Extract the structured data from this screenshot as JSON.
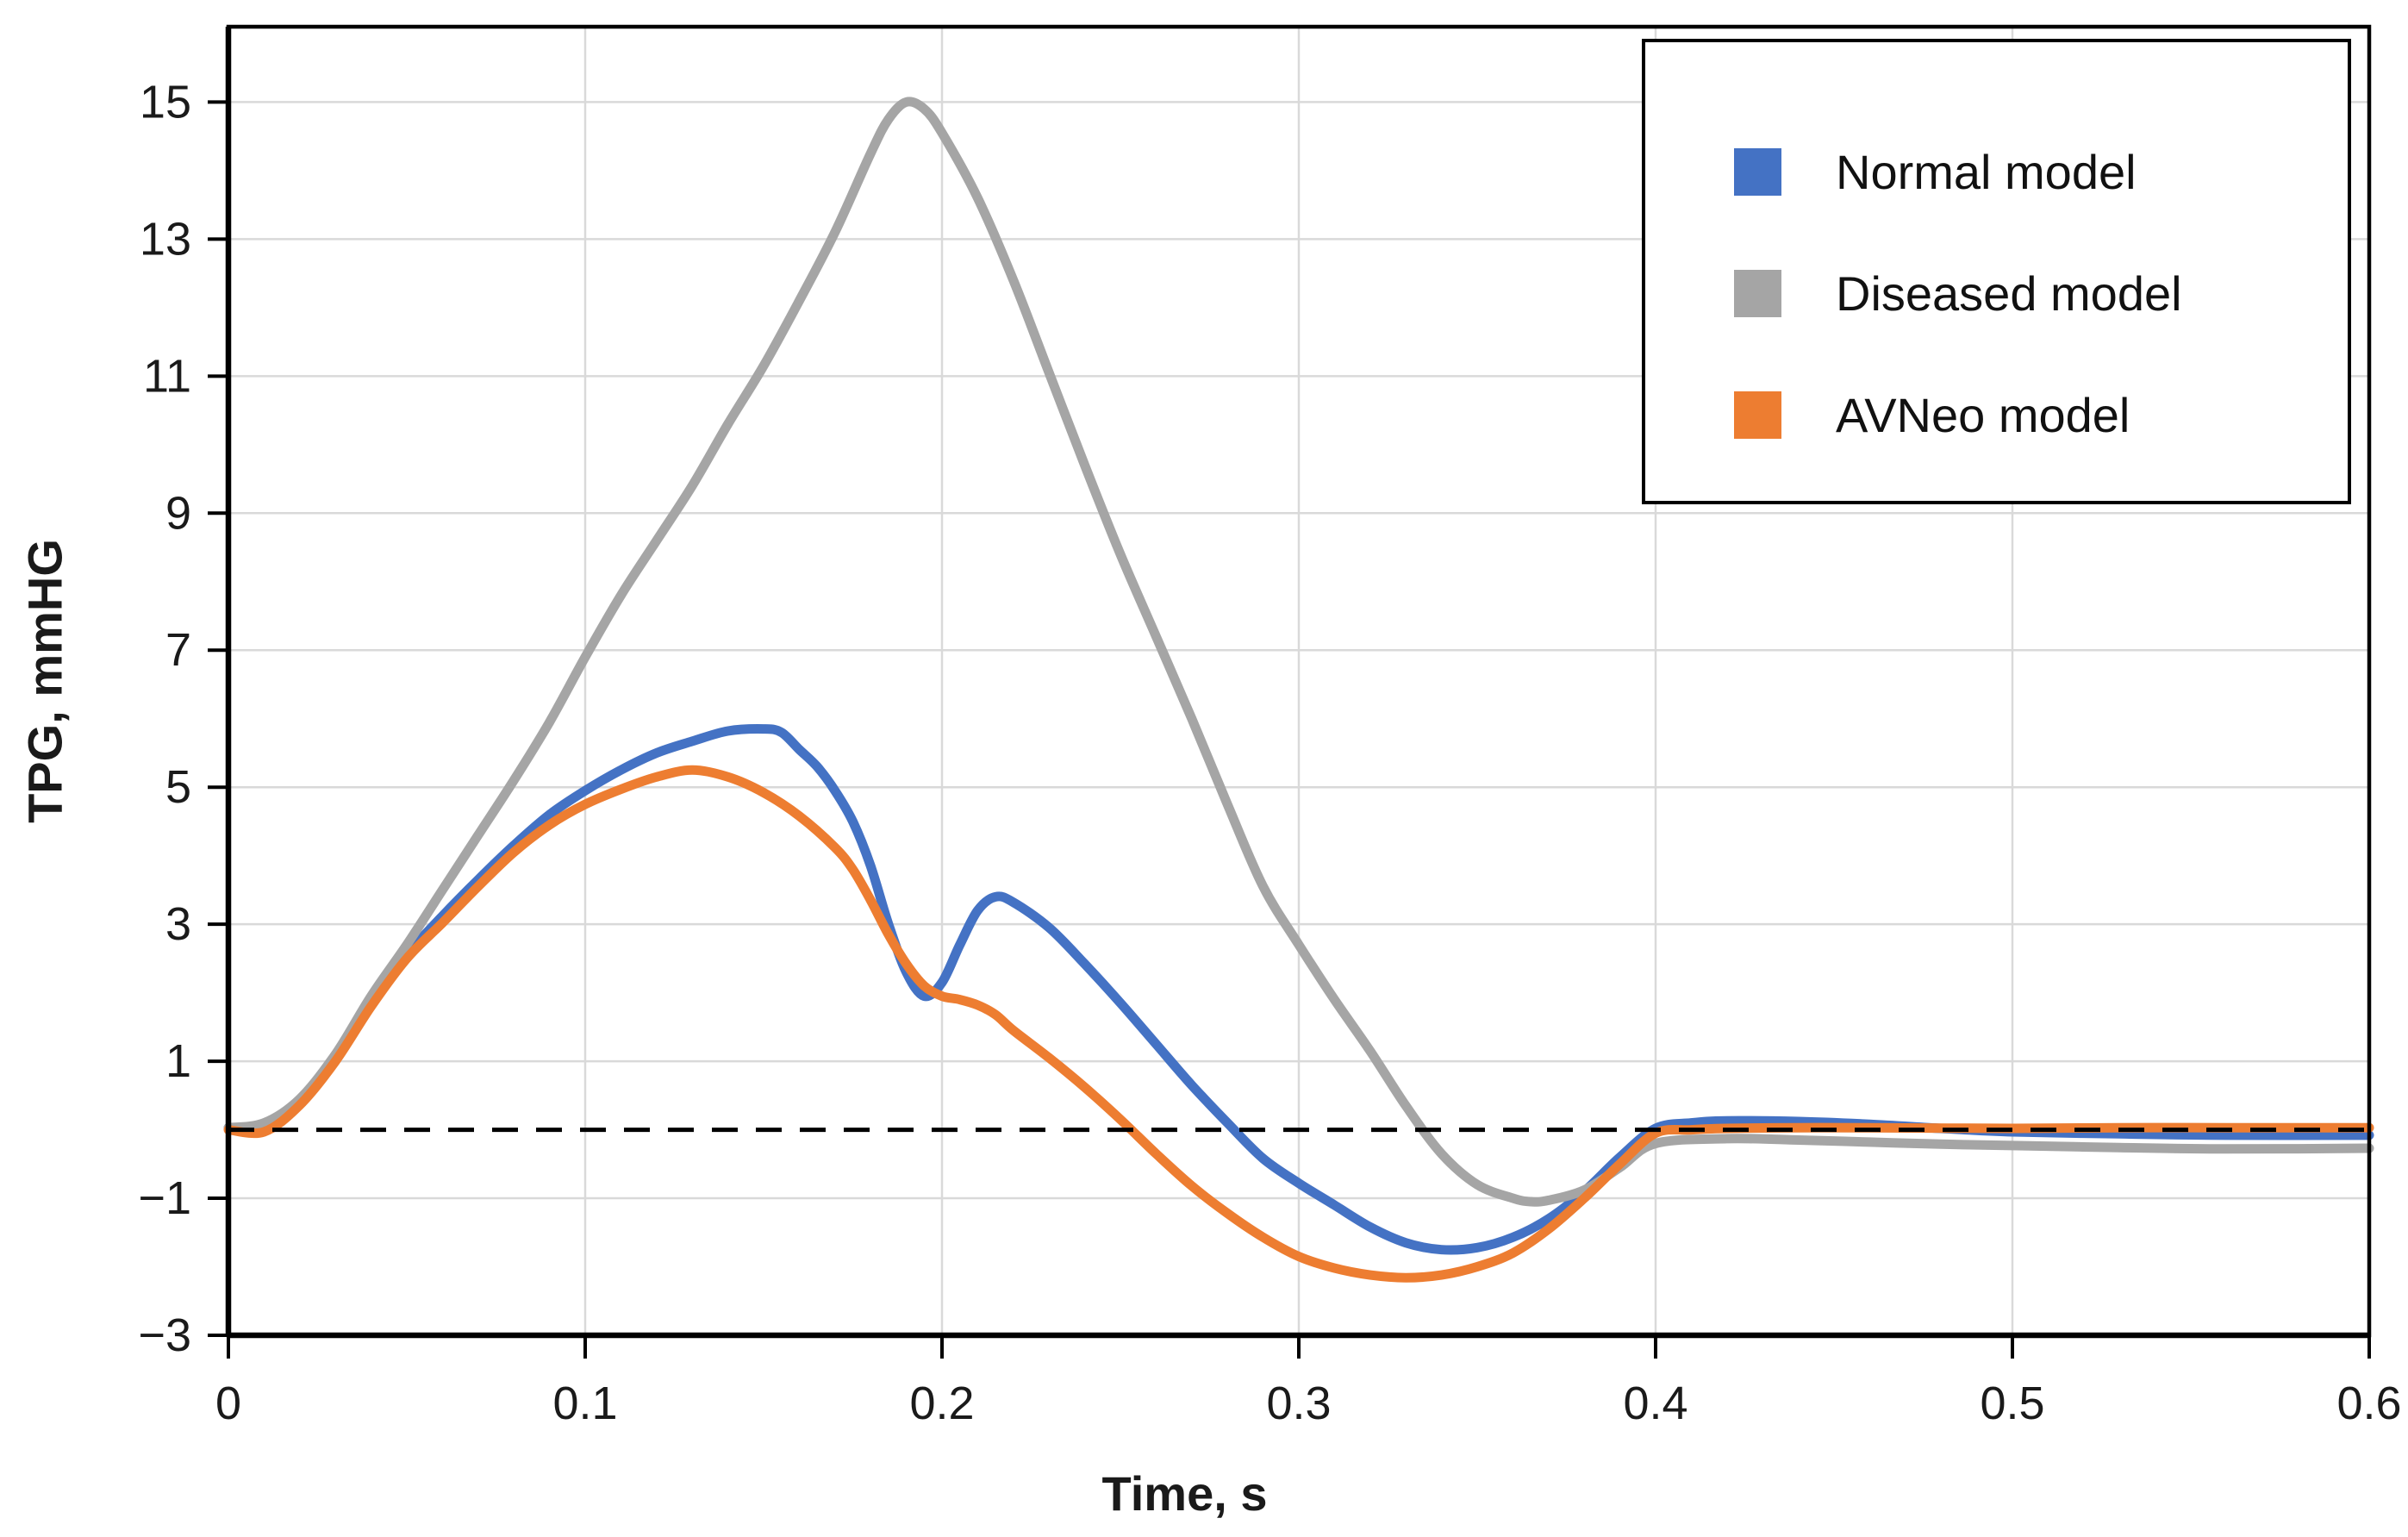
{
  "chart_data": {
    "type": "line",
    "title": "",
    "xlabel": "Time, s",
    "ylabel": "TPG, mmHG",
    "xlim": [
      0,
      0.6
    ],
    "ylim": [
      -3,
      16.1
    ],
    "grid": true,
    "legend_position": "top-right",
    "x_ticks": {
      "values": [
        0,
        0.1,
        0.2,
        0.3,
        0.4,
        0.5,
        0.6
      ],
      "labels": [
        "0",
        "0.1",
        "0.2",
        "0.3",
        "0.4",
        "0.5",
        "0.6"
      ]
    },
    "y_ticks": {
      "values": [
        15,
        13,
        11,
        9,
        7,
        5,
        3,
        1,
        -1,
        -3
      ],
      "labels": [
        "15",
        "13",
        "11",
        "9",
        "7",
        "5",
        "3",
        "1",
        "−1",
        "−3"
      ]
    },
    "zero_line": {
      "style": "dashed",
      "value": 0,
      "color": "#000000"
    },
    "series": [
      {
        "name": "Normal model",
        "color": "#4472C4",
        "points": [
          [
            0,
            0.03
          ],
          [
            0.01,
            0.08
          ],
          [
            0.02,
            0.42
          ],
          [
            0.03,
            1.05
          ],
          [
            0.04,
            1.85
          ],
          [
            0.05,
            2.55
          ],
          [
            0.06,
            3.12
          ],
          [
            0.07,
            3.65
          ],
          [
            0.08,
            4.15
          ],
          [
            0.09,
            4.6
          ],
          [
            0.1,
            4.95
          ],
          [
            0.11,
            5.25
          ],
          [
            0.12,
            5.5
          ],
          [
            0.13,
            5.67
          ],
          [
            0.14,
            5.82
          ],
          [
            0.15,
            5.85
          ],
          [
            0.155,
            5.8
          ],
          [
            0.16,
            5.55
          ],
          [
            0.165,
            5.3
          ],
          [
            0.17,
            4.95
          ],
          [
            0.175,
            4.5
          ],
          [
            0.18,
            3.85
          ],
          [
            0.185,
            3.0
          ],
          [
            0.19,
            2.3
          ],
          [
            0.195,
            1.95
          ],
          [
            0.2,
            2.15
          ],
          [
            0.205,
            2.7
          ],
          [
            0.21,
            3.2
          ],
          [
            0.215,
            3.4
          ],
          [
            0.22,
            3.32
          ],
          [
            0.23,
            2.95
          ],
          [
            0.24,
            2.42
          ],
          [
            0.25,
            1.85
          ],
          [
            0.26,
            1.25
          ],
          [
            0.27,
            0.65
          ],
          [
            0.28,
            0.1
          ],
          [
            0.29,
            -0.42
          ],
          [
            0.3,
            -0.78
          ],
          [
            0.31,
            -1.1
          ],
          [
            0.32,
            -1.42
          ],
          [
            0.33,
            -1.65
          ],
          [
            0.34,
            -1.75
          ],
          [
            0.35,
            -1.72
          ],
          [
            0.36,
            -1.57
          ],
          [
            0.37,
            -1.3
          ],
          [
            0.38,
            -0.9
          ],
          [
            0.39,
            -0.4
          ],
          [
            0.4,
            0.02
          ],
          [
            0.41,
            0.1
          ],
          [
            0.42,
            0.13
          ],
          [
            0.44,
            0.12
          ],
          [
            0.46,
            0.08
          ],
          [
            0.48,
            0.02
          ],
          [
            0.5,
            -0.03
          ],
          [
            0.53,
            -0.06
          ],
          [
            0.56,
            -0.08
          ],
          [
            0.6,
            -0.08
          ]
        ]
      },
      {
        "name": "Diseased model",
        "color": "#A5A5A5",
        "points": [
          [
            0,
            0.03
          ],
          [
            0.01,
            0.1
          ],
          [
            0.02,
            0.45
          ],
          [
            0.03,
            1.1
          ],
          [
            0.04,
            1.95
          ],
          [
            0.05,
            2.7
          ],
          [
            0.06,
            3.5
          ],
          [
            0.07,
            4.3
          ],
          [
            0.08,
            5.1
          ],
          [
            0.09,
            5.95
          ],
          [
            0.1,
            6.9
          ],
          [
            0.11,
            7.8
          ],
          [
            0.12,
            8.6
          ],
          [
            0.13,
            9.4
          ],
          [
            0.14,
            10.3
          ],
          [
            0.15,
            11.15
          ],
          [
            0.16,
            12.1
          ],
          [
            0.17,
            13.1
          ],
          [
            0.18,
            14.25
          ],
          [
            0.185,
            14.75
          ],
          [
            0.19,
            15.0
          ],
          [
            0.195,
            14.9
          ],
          [
            0.2,
            14.55
          ],
          [
            0.21,
            13.6
          ],
          [
            0.22,
            12.4
          ],
          [
            0.23,
            11.05
          ],
          [
            0.24,
            9.7
          ],
          [
            0.25,
            8.4
          ],
          [
            0.26,
            7.2
          ],
          [
            0.27,
            6.0
          ],
          [
            0.28,
            4.75
          ],
          [
            0.29,
            3.55
          ],
          [
            0.3,
            2.7
          ],
          [
            0.31,
            1.9
          ],
          [
            0.32,
            1.15
          ],
          [
            0.33,
            0.35
          ],
          [
            0.34,
            -0.35
          ],
          [
            0.35,
            -0.8
          ],
          [
            0.36,
            -1.0
          ],
          [
            0.365,
            -1.05
          ],
          [
            0.37,
            -1.03
          ],
          [
            0.38,
            -0.88
          ],
          [
            0.39,
            -0.55
          ],
          [
            0.4,
            -0.2
          ],
          [
            0.42,
            -0.13
          ],
          [
            0.44,
            -0.15
          ],
          [
            0.46,
            -0.18
          ],
          [
            0.48,
            -0.21
          ],
          [
            0.5,
            -0.23
          ],
          [
            0.53,
            -0.26
          ],
          [
            0.56,
            -0.28
          ],
          [
            0.6,
            -0.27
          ]
        ]
      },
      {
        "name": "AVNeo model",
        "color": "#ED7D31",
        "points": [
          [
            0,
            0.0
          ],
          [
            0.01,
            -0.03
          ],
          [
            0.02,
            0.36
          ],
          [
            0.03,
            1.0
          ],
          [
            0.04,
            1.8
          ],
          [
            0.05,
            2.5
          ],
          [
            0.06,
            3.02
          ],
          [
            0.07,
            3.55
          ],
          [
            0.08,
            4.05
          ],
          [
            0.09,
            4.45
          ],
          [
            0.1,
            4.75
          ],
          [
            0.11,
            4.97
          ],
          [
            0.12,
            5.15
          ],
          [
            0.13,
            5.25
          ],
          [
            0.14,
            5.15
          ],
          [
            0.15,
            4.92
          ],
          [
            0.16,
            4.58
          ],
          [
            0.17,
            4.12
          ],
          [
            0.175,
            3.8
          ],
          [
            0.18,
            3.35
          ],
          [
            0.185,
            2.85
          ],
          [
            0.19,
            2.42
          ],
          [
            0.195,
            2.1
          ],
          [
            0.2,
            1.95
          ],
          [
            0.205,
            1.9
          ],
          [
            0.21,
            1.82
          ],
          [
            0.215,
            1.68
          ],
          [
            0.22,
            1.45
          ],
          [
            0.23,
            1.05
          ],
          [
            0.24,
            0.62
          ],
          [
            0.25,
            0.15
          ],
          [
            0.26,
            -0.35
          ],
          [
            0.27,
            -0.82
          ],
          [
            0.28,
            -1.22
          ],
          [
            0.29,
            -1.57
          ],
          [
            0.3,
            -1.85
          ],
          [
            0.31,
            -2.02
          ],
          [
            0.32,
            -2.12
          ],
          [
            0.33,
            -2.16
          ],
          [
            0.34,
            -2.12
          ],
          [
            0.35,
            -2.0
          ],
          [
            0.36,
            -1.8
          ],
          [
            0.37,
            -1.45
          ],
          [
            0.38,
            -1.0
          ],
          [
            0.39,
            -0.5
          ],
          [
            0.4,
            -0.05
          ],
          [
            0.41,
            0.0
          ],
          [
            0.42,
            0.02
          ],
          [
            0.44,
            0.03
          ],
          [
            0.46,
            0.03
          ],
          [
            0.5,
            0.02
          ],
          [
            0.53,
            0.03
          ],
          [
            0.56,
            0.03
          ],
          [
            0.6,
            0.03
          ]
        ]
      }
    ]
  },
  "legend": {
    "items": [
      {
        "label": "Normal model",
        "color": "#4472C4"
      },
      {
        "label": "Diseased model",
        "color": "#A5A5A5"
      },
      {
        "label": "AVNeo model",
        "color": "#ED7D31"
      }
    ]
  },
  "styles": {
    "grid_color": "#D9D9D9",
    "axis_color": "#000000",
    "text_color": "#1A1A1A",
    "background": "#FFFFFF"
  }
}
